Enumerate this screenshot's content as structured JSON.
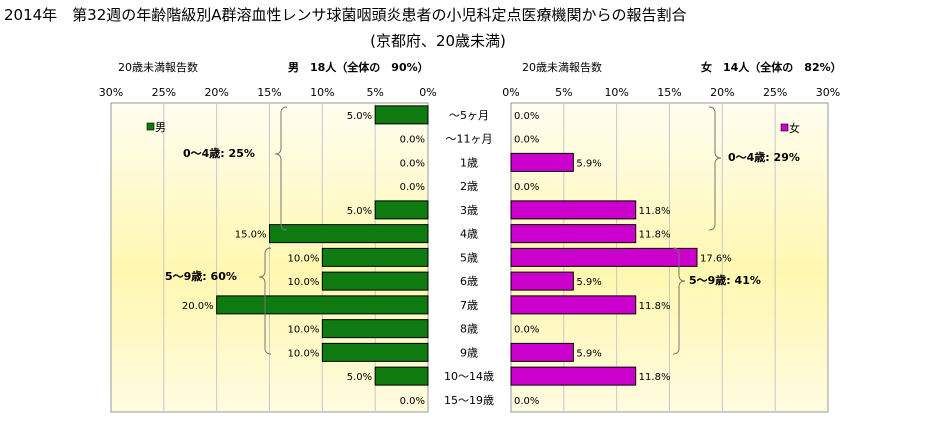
{
  "title": {
    "line1": "2014年　第32週の年齢階級別A群溶血性レンサ球菌咽頭炎患者の小児科定点医療機関からの報告割合",
    "line2": "(京都府、20歳未満)"
  },
  "colors": {
    "male_bar": "#0f7a0f",
    "female_bar": "#cc00cc",
    "plot_bg_top": "#fffbe0",
    "plot_bg_mid": "#fff7b0",
    "grid": "#c8c8c8"
  },
  "chart_data": [
    {
      "type": "bar",
      "orientation": "horizontal",
      "direction": "right-to-left",
      "header_left": "20歳未満報告数",
      "header_right": "男　18人（全体の　90%）",
      "legend": "男",
      "xlim": [
        0,
        30
      ],
      "ticks": [
        "30%",
        "25%",
        "20%",
        "15%",
        "10%",
        "5%",
        "0%"
      ],
      "categories": [
        "～5ヶ月",
        "～11ヶ月",
        "1歳",
        "2歳",
        "3歳",
        "4歳",
        "5歳",
        "6歳",
        "7歳",
        "8歳",
        "9歳",
        "10～14歳",
        "15～19歳"
      ],
      "values": [
        5.0,
        0.0,
        0.0,
        0.0,
        5.0,
        15.0,
        10.0,
        10.0,
        20.0,
        10.0,
        10.0,
        5.0,
        0.0
      ],
      "data_labels": [
        "5.0%",
        "0.0%",
        "0.0%",
        "0.0%",
        "5.0%",
        "15.0%",
        "10.0%",
        "10.0%",
        "20.0%",
        "10.0%",
        "10.0%",
        "5.0%",
        "0.0%"
      ],
      "group_annotations": [
        "0～4歳: 25%",
        "5～9歳: 60%"
      ]
    },
    {
      "type": "bar",
      "orientation": "horizontal",
      "direction": "left-to-right",
      "header_left": "20歳未満報告数",
      "header_right": "女　14人（全体の　82%）",
      "legend": "女",
      "xlim": [
        0,
        30
      ],
      "ticks": [
        "0%",
        "5%",
        "10%",
        "15%",
        "20%",
        "25%",
        "30%"
      ],
      "categories": [
        "～5ヶ月",
        "～11ヶ月",
        "1歳",
        "2歳",
        "3歳",
        "4歳",
        "5歳",
        "6歳",
        "7歳",
        "8歳",
        "9歳",
        "10～14歳",
        "15～19歳"
      ],
      "values": [
        0.0,
        0.0,
        5.9,
        0.0,
        11.8,
        11.8,
        17.6,
        5.9,
        11.8,
        0.0,
        5.9,
        11.8,
        0.0
      ],
      "data_labels": [
        "0.0%",
        "0.0%",
        "5.9%",
        "0.0%",
        "11.8%",
        "11.8%",
        "17.6%",
        "5.9%",
        "11.8%",
        "0.0%",
        "5.9%",
        "11.8%",
        "0.0%"
      ],
      "group_annotations": [
        "0～4歳: 29%",
        "5～9歳: 41%"
      ]
    }
  ]
}
